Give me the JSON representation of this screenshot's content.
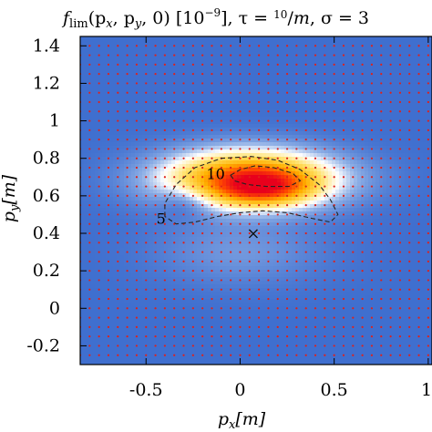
{
  "chart_data": {
    "type": "heatmap",
    "title": "f_lim(p_x, p_y, 0) [10^-9], τ = 10/m, σ = 3",
    "title_parts": {
      "f": "f",
      "sub": "lim",
      "args": "(p",
      "px_sub": "x",
      "comma": ", p",
      "py_sub": "y",
      "rest": ", 0) [10",
      "exp": "−9",
      "close": "], τ = ",
      "tau_num": "10",
      "tau_slash": "/",
      "tau_den": "m",
      "sigma": ", σ = 3"
    },
    "xlabel": {
      "p": "p",
      "sub": "x",
      "unit": "[m]"
    },
    "ylabel": {
      "p": "p",
      "sub": "y",
      "unit": "[m]"
    },
    "xlim": [
      -0.85,
      1.02
    ],
    "ylim": [
      -0.3,
      1.45
    ],
    "xticks": [
      {
        "v": -0.5,
        "label": "-0.5"
      },
      {
        "v": 0,
        "label": "0"
      },
      {
        "v": 0.5,
        "label": "0.5"
      },
      {
        "v": 1,
        "label": "1"
      }
    ],
    "yticks": [
      {
        "v": -0.2,
        "label": "-0.2"
      },
      {
        "v": 0,
        "label": "0"
      },
      {
        "v": 0.2,
        "label": "0.2"
      },
      {
        "v": 0.4,
        "label": "0.4"
      },
      {
        "v": 0.6,
        "label": "0.6"
      },
      {
        "v": 0.8,
        "label": "0.8"
      },
      {
        "v": 1,
        "label": "1"
      },
      {
        "v": 1.2,
        "label": "1.2"
      },
      {
        "v": 1.4,
        "label": "1.4"
      }
    ],
    "colormap": [
      "#3f6fcf",
      "#8fb0e6",
      "#ffffff",
      "#ffe066",
      "#ffb000",
      "#ff4a00",
      "#e8001c"
    ],
    "blobs": [
      {
        "cx": 0.05,
        "cy": 0.69,
        "sx": 0.3,
        "sy": 0.1,
        "amp": 10.0
      },
      {
        "cx": 0.12,
        "cy": 0.64,
        "sx": 0.16,
        "sy": 0.06,
        "amp": 5.0
      },
      {
        "cx": -0.28,
        "cy": 0.58,
        "sx": 0.1,
        "sy": 0.06,
        "amp": -1.5
      },
      {
        "cx": 0.0,
        "cy": 0.3,
        "sx": 0.3,
        "sy": 0.12,
        "amp": 1.0
      }
    ],
    "contours": [
      {
        "level": 5,
        "label": "5",
        "label_pos": [
          -0.42,
          0.45
        ],
        "points": [
          [
            -0.4,
            0.49
          ],
          [
            -0.4,
            0.56
          ],
          [
            -0.34,
            0.66
          ],
          [
            -0.24,
            0.75
          ],
          [
            -0.1,
            0.8
          ],
          [
            0.06,
            0.81
          ],
          [
            0.2,
            0.79
          ],
          [
            0.32,
            0.74
          ],
          [
            0.42,
            0.66
          ],
          [
            0.48,
            0.58
          ],
          [
            0.52,
            0.5
          ],
          [
            0.48,
            0.46
          ],
          [
            0.38,
            0.48
          ],
          [
            0.25,
            0.51
          ],
          [
            0.12,
            0.52
          ],
          [
            0.0,
            0.51
          ],
          [
            -0.12,
            0.49
          ],
          [
            -0.24,
            0.46
          ],
          [
            -0.34,
            0.45
          ],
          [
            -0.4,
            0.49
          ]
        ]
      },
      {
        "level": 10,
        "label": "10",
        "label_pos": [
          -0.13,
          0.69
        ],
        "points": [
          [
            -0.05,
            0.71
          ],
          [
            0.0,
            0.74
          ],
          [
            0.08,
            0.76
          ],
          [
            0.18,
            0.75
          ],
          [
            0.28,
            0.72
          ],
          [
            0.32,
            0.68
          ],
          [
            0.26,
            0.65
          ],
          [
            0.14,
            0.65
          ],
          [
            0.04,
            0.66
          ],
          [
            -0.03,
            0.68
          ],
          [
            -0.05,
            0.71
          ]
        ]
      }
    ],
    "marker": {
      "x": 0.07,
      "y": 0.4,
      "symbol": "×"
    },
    "dot_grid": {
      "x_step": 0.05,
      "y_step": 0.05,
      "color": "#e0201a"
    }
  }
}
